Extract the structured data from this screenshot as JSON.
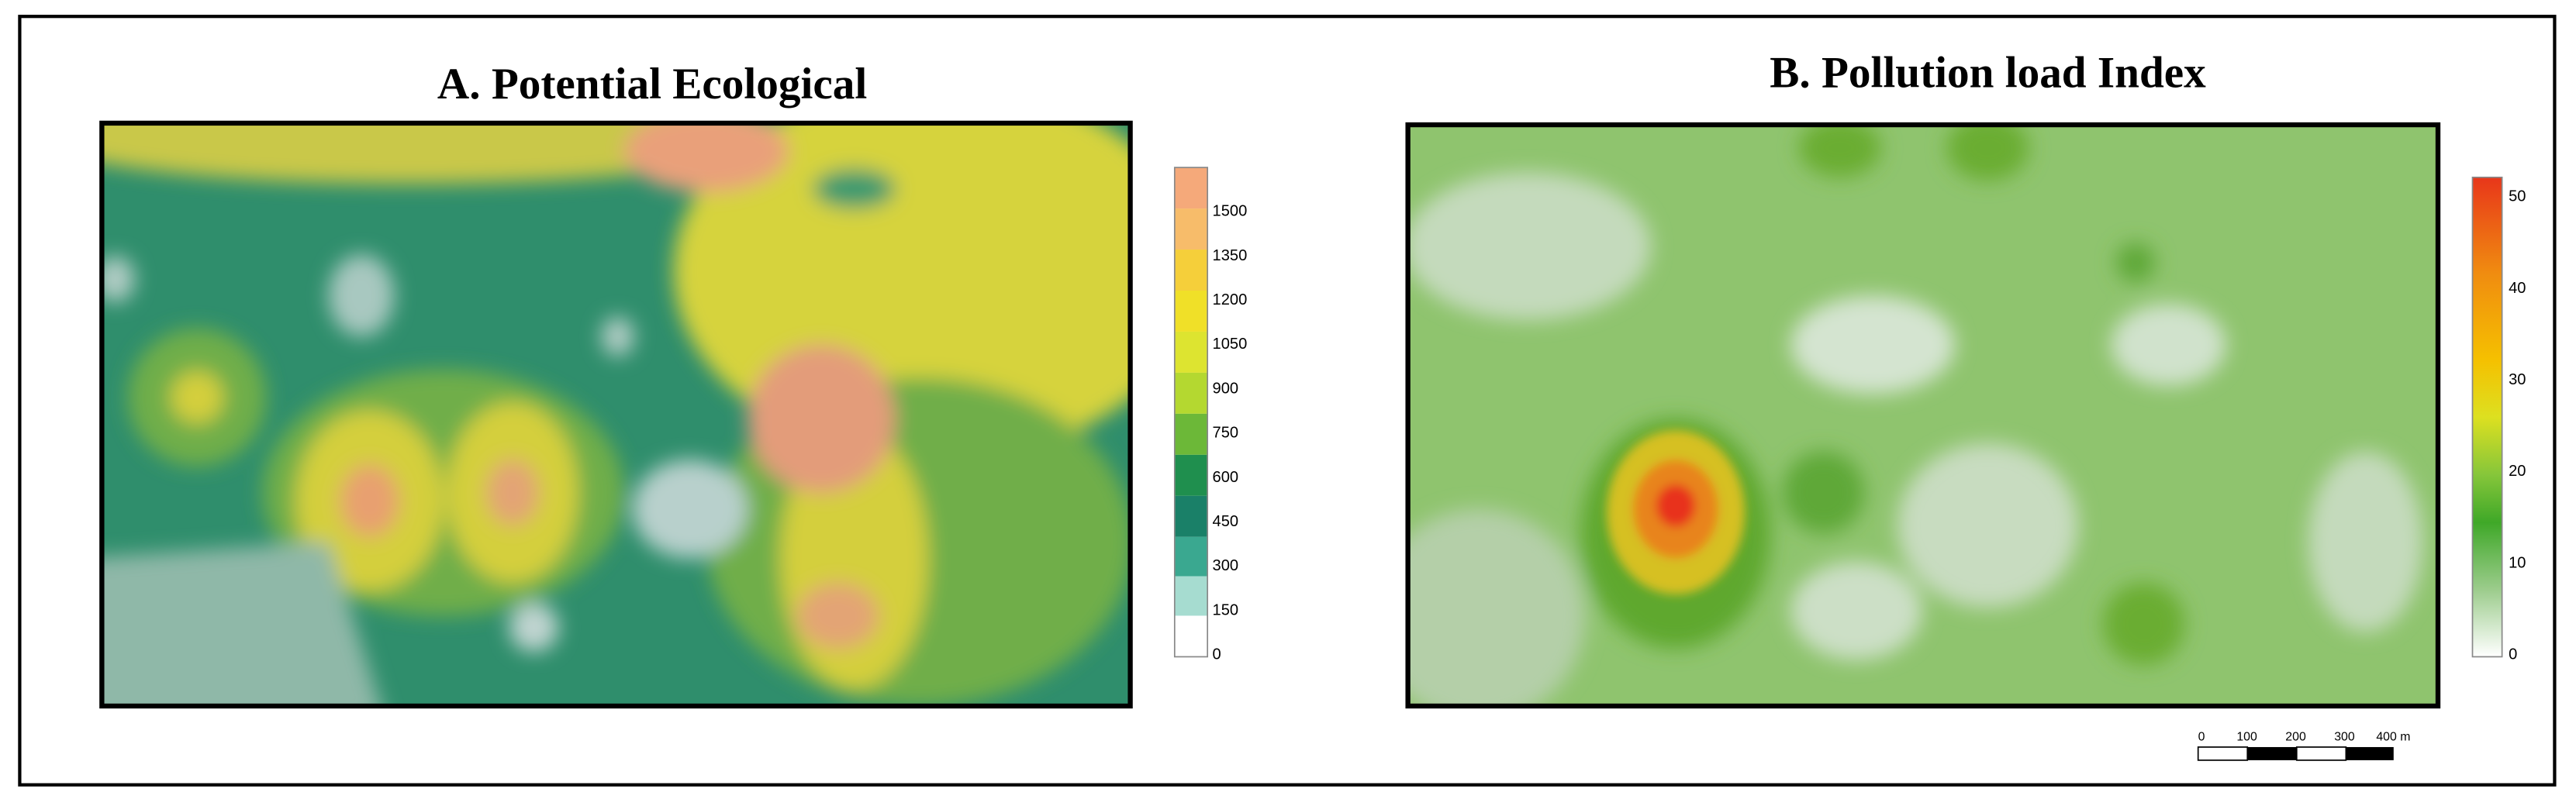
{
  "panel_a": {
    "title": "A. Potential Ecological",
    "legend_ticks": [
      "1500",
      "1350",
      "1200",
      "1050",
      "900",
      "750",
      "600",
      "450",
      "300",
      "150",
      "0"
    ]
  },
  "panel_b": {
    "title": "B. Pollution load Index",
    "legend_ticks": [
      "50",
      "40",
      "30",
      "20",
      "10",
      "0"
    ]
  },
  "scale_bar": {
    "labels": [
      "0",
      "100",
      "200",
      "300",
      "400 m"
    ]
  }
}
